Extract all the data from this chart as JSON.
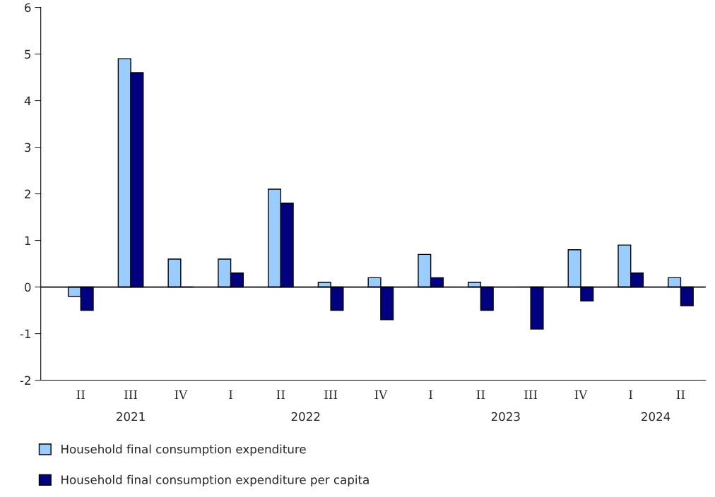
{
  "chart_data": {
    "type": "bar",
    "categories": [
      "II",
      "III",
      "IV",
      "I",
      "II",
      "III",
      "IV",
      "I",
      "II",
      "III",
      "IV",
      "I",
      "II"
    ],
    "series": [
      {
        "name": "Household final consumption expenditure",
        "color": "#99ccff",
        "values": [
          -0.2,
          4.9,
          0.6,
          0.6,
          2.1,
          0.1,
          0.2,
          0.7,
          0.1,
          0.0,
          0.8,
          0.9,
          0.2
        ]
      },
      {
        "name": "Household final consumption expenditure per capita",
        "color": "#000080",
        "values": [
          -0.5,
          4.6,
          0.0,
          0.3,
          1.8,
          -0.5,
          -0.7,
          0.2,
          -0.5,
          -0.9,
          -0.3,
          0.3,
          -0.4
        ]
      }
    ],
    "annotations": [
      "2021",
      "2022",
      "2023",
      "2024"
    ],
    "ylim": [
      -2,
      6
    ],
    "yticks": [
      -2,
      -1,
      0,
      1,
      2,
      3,
      4,
      5,
      6
    ],
    "legend": "bottom left"
  }
}
